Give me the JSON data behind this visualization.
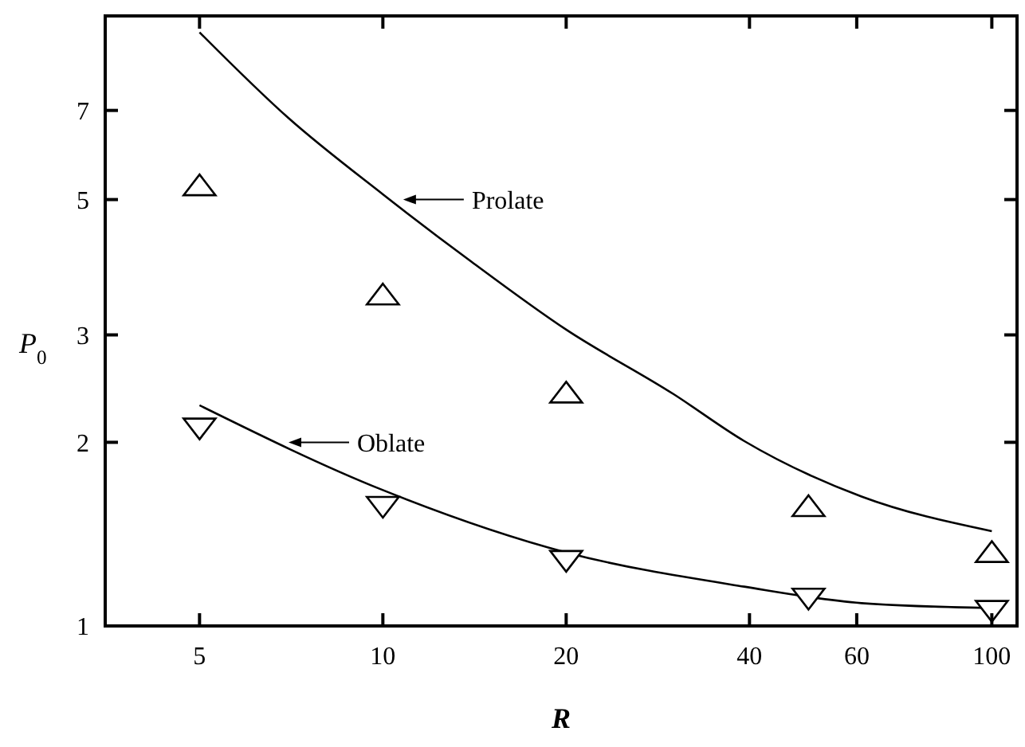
{
  "chart_data": {
    "type": "scatter",
    "xlabel": "R",
    "ylabel": "P$_{0}$",
    "log": "xy",
    "xlim": [
      3.5,
      110
    ],
    "ylim": [
      1,
      10
    ],
    "xticks": [
      5,
      10,
      20,
      40,
      60,
      100
    ],
    "yticks": [
      1,
      2,
      3,
      5,
      7
    ],
    "grid": false,
    "series": [
      {
        "type": "line",
        "color": "#000000",
        "x": [
          5,
          7,
          10,
          14,
          20,
          30,
          39.2,
          61.1,
          100
        ],
        "values": [
          9.4,
          6.8,
          5.1,
          3.95,
          3.06,
          2.4,
          2.01,
          1.63,
          1.43
        ]
      },
      {
        "type": "line",
        "color": "#000000",
        "x": [
          5,
          10,
          20,
          39.2,
          61.1,
          100
        ],
        "values": [
          2.3,
          1.67,
          1.32,
          1.16,
          1.09,
          1.07
        ]
      },
      {
        "color": "#000000",
        "marker": "triangle",
        "x": [
          5,
          10,
          20,
          50,
          100
        ],
        "values": [
          5.27,
          3.49,
          2.41,
          1.57,
          1.32
        ]
      },
      {
        "color": "#000000",
        "marker": "triangle-down",
        "x": [
          5,
          10,
          20,
          50,
          100
        ],
        "values": [
          2.11,
          1.57,
          1.28,
          1.11,
          1.06
        ]
      }
    ],
    "annotations": [
      {
        "text": "Prolate",
        "x": 10.8,
        "y": 5.0
      },
      {
        "text": "Oblate",
        "x": 7,
        "y": 2.0
      }
    ]
  }
}
